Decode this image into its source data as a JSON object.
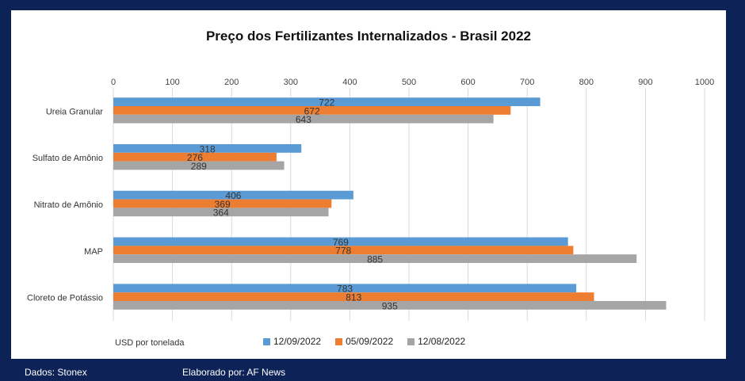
{
  "chart_data": {
    "type": "bar",
    "orientation": "horizontal",
    "title": "Preço dos Fertilizantes Internalizados  - Brasil 2022",
    "categories": [
      "Ureia Granular",
      "Sulfato de Amônio",
      "Nitrato de Amônio",
      "MAP",
      "Cloreto de Potássio"
    ],
    "series": [
      {
        "name": "12/09/2022",
        "color": "#5b9bd5",
        "values": [
          722,
          318,
          406,
          769,
          783
        ]
      },
      {
        "name": "05/09/2022",
        "color": "#ed7d31",
        "values": [
          672,
          276,
          369,
          778,
          813
        ]
      },
      {
        "name": "12/08/2022",
        "color": "#a5a5a5",
        "values": [
          643,
          289,
          364,
          885,
          935
        ]
      }
    ],
    "xlim": [
      0,
      1000
    ],
    "x_ticks": [
      "0",
      "100",
      "200",
      "300",
      "400",
      "500",
      "600",
      "700",
      "800",
      "900",
      "1000"
    ],
    "x_axis_position": "top",
    "unit_note": "USD por tonelada",
    "grid": true,
    "legend_position": "bottom"
  },
  "footer": {
    "source": "Dados: Stonex",
    "author": "Elaborado por: AF News"
  }
}
